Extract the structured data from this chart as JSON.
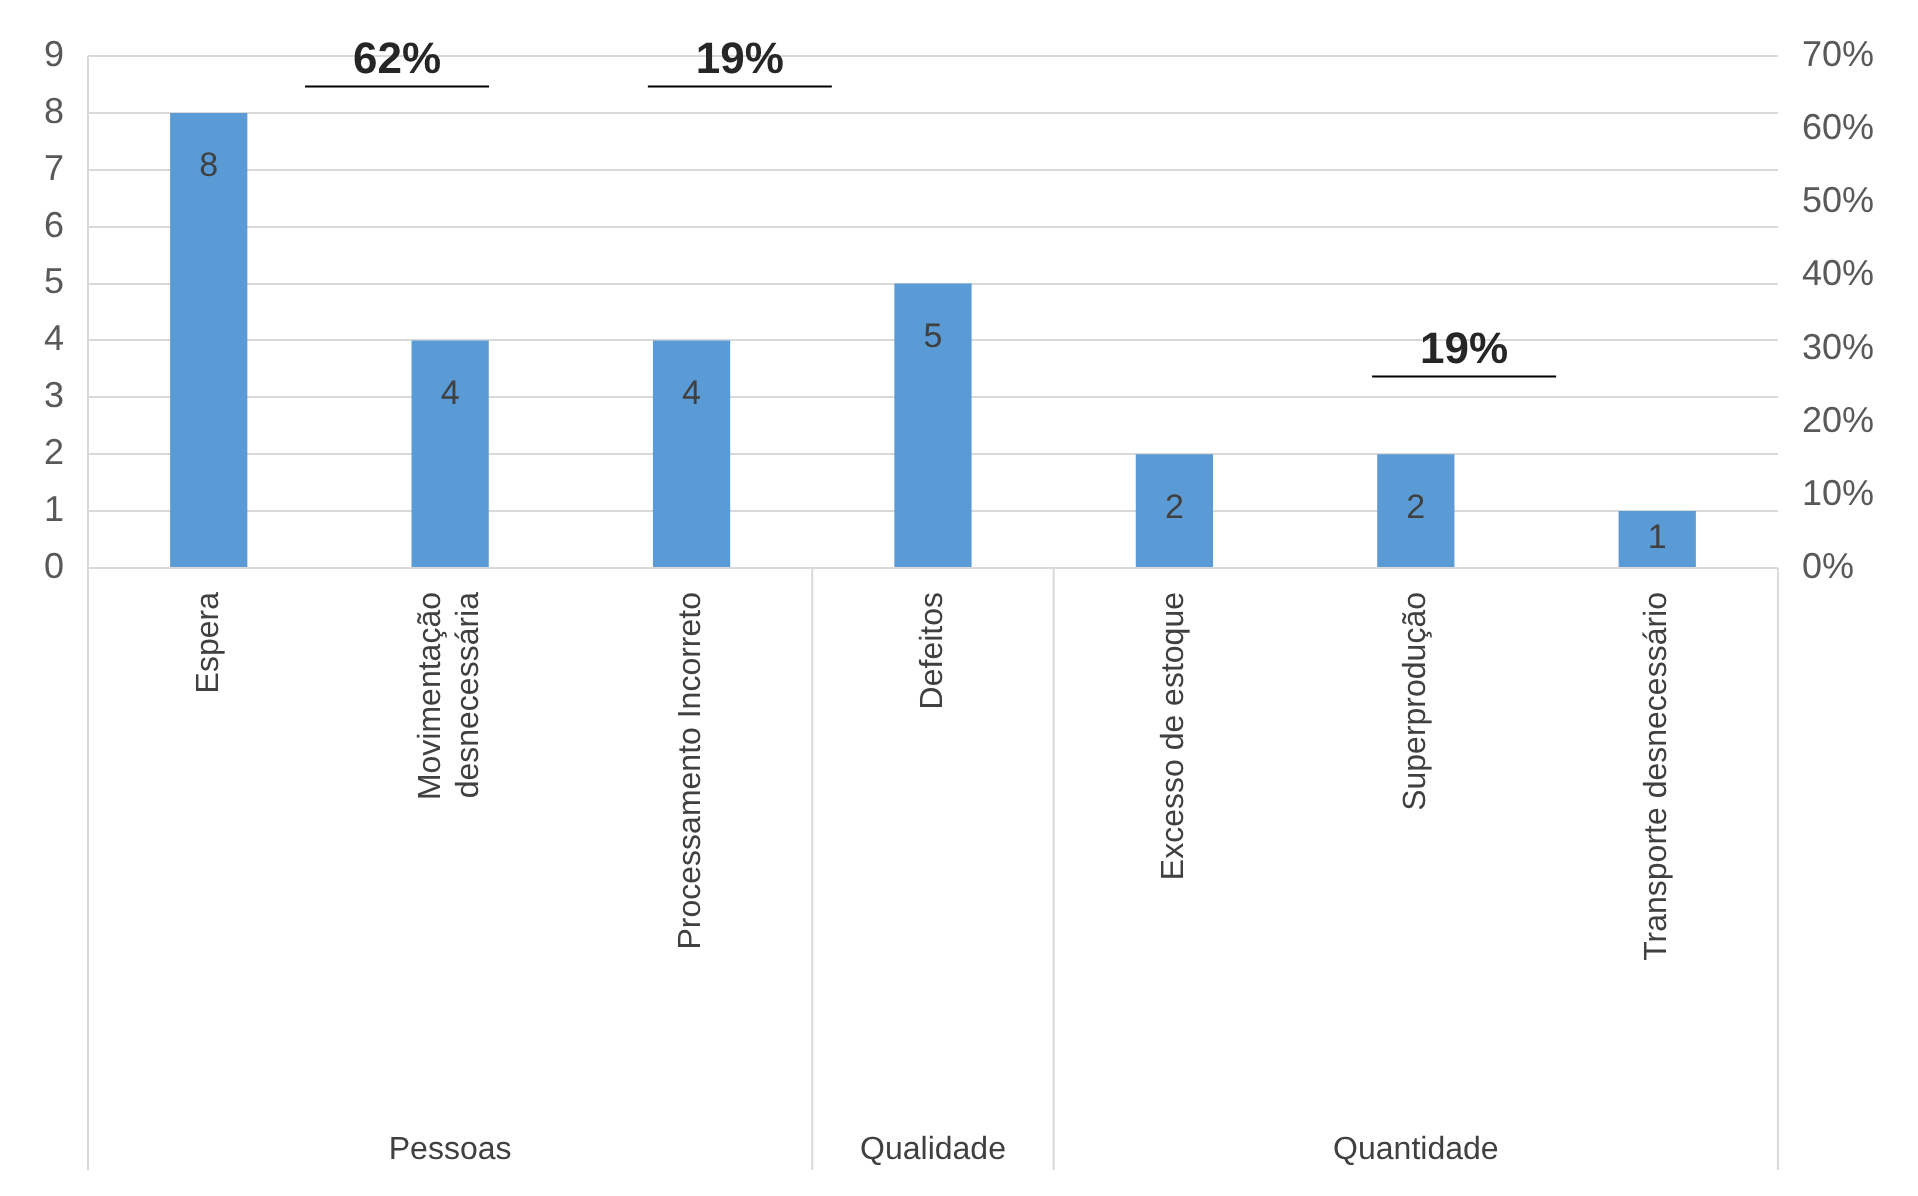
{
  "chart_data": {
    "type": "bar",
    "categories": [
      "Espera",
      "Movimentação\ndesnecessária",
      "Processamento Incorreto",
      "Defeitos",
      "Excesso de estoque",
      "Superprodução",
      "Transporte desnecessário"
    ],
    "values": [
      8,
      4,
      4,
      5,
      2,
      2,
      1
    ],
    "color": "#5b9bd5",
    "data_labels": true,
    "ylim": [
      0,
      9
    ],
    "yticks": [
      0,
      1,
      2,
      3,
      4,
      5,
      6,
      7,
      8,
      9
    ],
    "y2lim": [
      0,
      70
    ],
    "y2ticks": [
      {
        "value": 0,
        "label": "0%"
      },
      {
        "value": 10,
        "label": "10%"
      },
      {
        "value": 20,
        "label": "20%"
      },
      {
        "value": 30,
        "label": "30%"
      },
      {
        "value": 40,
        "label": "40%"
      },
      {
        "value": 50,
        "label": "50%"
      },
      {
        "value": 60,
        "label": "60%"
      },
      {
        "value": 70,
        "label": "70%"
      }
    ],
    "grid": "y",
    "legend": false,
    "annotations": [
      "Pessoas",
      "Qualidade",
      "Quantidade",
      "62%",
      "19%",
      "19%"
    ]
  }
}
